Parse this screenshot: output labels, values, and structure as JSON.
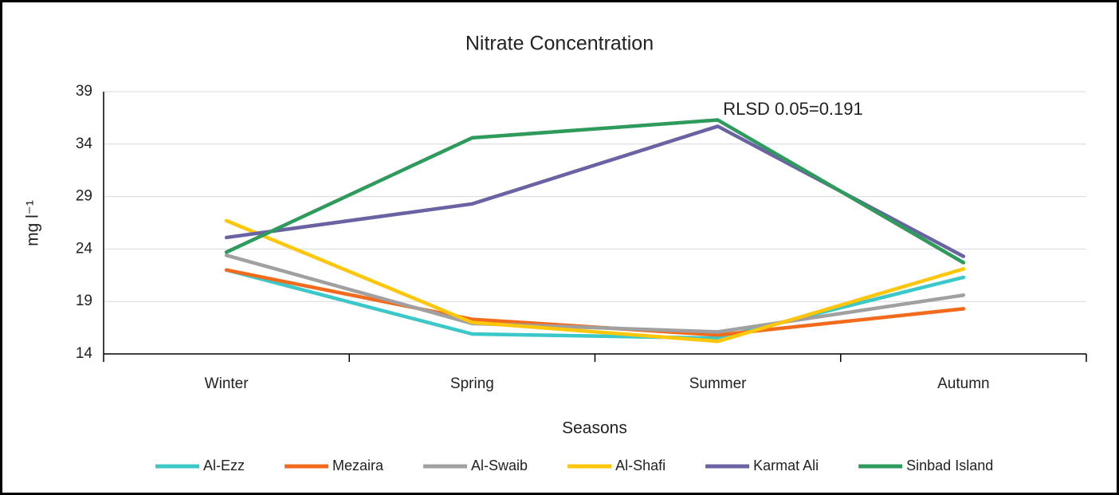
{
  "chart_data": {
    "type": "line",
    "title": "Nitrate Concentration",
    "x_label": "Seasons",
    "y_label": "mg l⁻¹",
    "annotation": "RLSD 0.05=0.191",
    "categories": [
      "Winter",
      "Spring",
      "Summer",
      "Autumn"
    ],
    "series": [
      {
        "name": "Al-Ezz",
        "color": "#3cc8c8",
        "values": [
          22.0,
          15.9,
          15.5,
          21.3
        ]
      },
      {
        "name": "Mezaira",
        "color": "#f26b1d",
        "values": [
          22.0,
          17.3,
          15.8,
          18.3
        ]
      },
      {
        "name": "Al-Swaib",
        "color": "#a0a0a0",
        "values": [
          23.4,
          16.9,
          16.1,
          19.6
        ]
      },
      {
        "name": "Al-Shafi",
        "color": "#ffc60a",
        "values": [
          26.7,
          17.0,
          15.2,
          22.1
        ]
      },
      {
        "name": "Karmat Ali",
        "color": "#6a63a3",
        "values": [
          25.1,
          28.3,
          35.7,
          23.3
        ]
      },
      {
        "name": "Sinbad Island",
        "color": "#2e9a5c",
        "values": [
          23.7,
          34.6,
          36.3,
          22.7
        ]
      }
    ],
    "ylim": [
      14,
      39
    ],
    "yticks": [
      14,
      19,
      24,
      29,
      34,
      39
    ],
    "grid": true,
    "legend": "bottom"
  }
}
